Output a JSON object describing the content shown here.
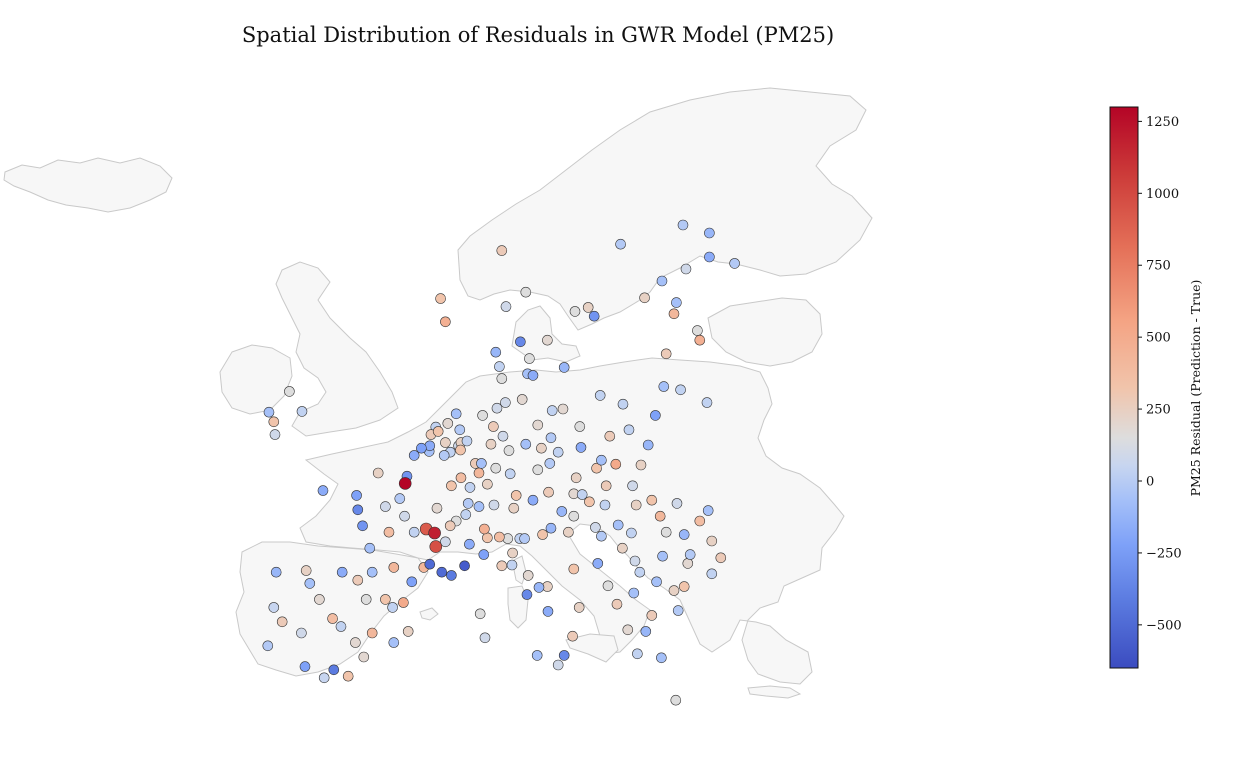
{
  "title": "Spatial Distribution of Residuals in GWR Model (PM25)",
  "colorbar": {
    "label": "PM25 Residual (Prediction - True)",
    "min": -650,
    "max": 1300,
    "ticks": [
      1250,
      1000,
      750,
      500,
      250,
      0,
      -250,
      -500
    ],
    "tick_labels": [
      "1250",
      "1000",
      "750",
      "500",
      "250",
      "0",
      "−250",
      "−500"
    ],
    "colormap": "coolwarm",
    "colors": {
      "low": "#3b4cc0",
      "mid": "#dddddd",
      "high": "#b40426"
    }
  },
  "chart_data": {
    "type": "scatter",
    "title": "Spatial Distribution of Residuals in GWR Model (PM25)",
    "xlabel": "",
    "ylabel": "",
    "value_label": "PM25 Residual (Prediction - True)",
    "background": "Europe country outlines (light gray fill, gray borders)",
    "grid": false,
    "legend": "colorbar-right",
    "points_lonlat_residual": [
      [
        -9.1,
        38.7,
        -150
      ],
      [
        -8.6,
        41.1,
        -80
      ],
      [
        -8.4,
        43.3,
        -250
      ],
      [
        -7.9,
        40.2,
        150
      ],
      [
        -6.0,
        37.4,
        -350
      ],
      [
        -5.9,
        43.4,
        100
      ],
      [
        -4.4,
        36.7,
        -80
      ],
      [
        -3.7,
        40.4,
        250
      ],
      [
        -3.6,
        37.2,
        -500
      ],
      [
        -2.9,
        43.3,
        -300
      ],
      [
        -1.6,
        42.8,
        150
      ],
      [
        -0.9,
        41.6,
        0
      ],
      [
        -0.4,
        39.5,
        300
      ],
      [
        0.7,
        41.6,
        200
      ],
      [
        2.2,
        41.4,
        400
      ],
      [
        1.3,
        41.1,
        -100
      ],
      [
        -2.4,
        36.8,
        200
      ],
      [
        -1.1,
        38.0,
        50
      ],
      [
        -4.8,
        41.6,
        50
      ],
      [
        -6.3,
        39.5,
        -50
      ],
      [
        -5.6,
        42.6,
        -200
      ],
      [
        -3.0,
        39.9,
        -100
      ],
      [
        -1.8,
        38.9,
        50
      ],
      [
        1.4,
        38.9,
        -200
      ],
      [
        2.6,
        39.6,
        100
      ],
      [
        2.35,
        48.85,
        1300
      ],
      [
        3.1,
        50.6,
        -300
      ],
      [
        4.8,
        45.75,
        1150
      ],
      [
        5.4,
        43.3,
        -550
      ],
      [
        7.3,
        43.7,
        -600
      ],
      [
        6.2,
        43.1,
        -500
      ],
      [
        4.4,
        43.8,
        -550
      ],
      [
        1.4,
        43.6,
        300
      ],
      [
        -0.6,
        44.8,
        -200
      ],
      [
        -1.6,
        47.2,
        -450
      ],
      [
        -4.5,
        48.4,
        -300
      ],
      [
        -1.7,
        48.1,
        -350
      ],
      [
        0.1,
        49.5,
        100
      ],
      [
        1.9,
        47.9,
        -150
      ],
      [
        0.7,
        47.4,
        -50
      ],
      [
        3.1,
        45.8,
        -100
      ],
      [
        5.0,
        47.3,
        50
      ],
      [
        6.2,
        48.7,
        200
      ],
      [
        7.75,
        48.6,
        -100
      ],
      [
        2.5,
        49.3,
        -400
      ],
      [
        3.9,
        43.6,
        300
      ],
      [
        2.9,
        42.7,
        -350
      ],
      [
        -0.4,
        43.3,
        -200
      ],
      [
        5.7,
        45.2,
        -50
      ],
      [
        4.9,
        44.9,
        900
      ],
      [
        6.1,
        46.2,
        150
      ],
      [
        4.1,
        46.0,
        850
      ],
      [
        1.0,
        45.8,
        250
      ],
      [
        -1.2,
        46.2,
        -400
      ],
      [
        2.3,
        46.8,
        -50
      ],
      [
        4.35,
        50.85,
        -200
      ],
      [
        4.4,
        51.2,
        -300
      ],
      [
        3.7,
        51.05,
        -350
      ],
      [
        5.6,
        50.6,
        -150
      ],
      [
        4.9,
        52.37,
        -100
      ],
      [
        5.1,
        52.1,
        200
      ],
      [
        6.6,
        53.2,
        -200
      ],
      [
        5.7,
        51.4,
        100
      ],
      [
        6.1,
        50.8,
        -100
      ],
      [
        4.5,
        51.9,
        150
      ],
      [
        5.9,
        52.6,
        50
      ],
      [
        6.9,
        52.2,
        -150
      ],
      [
        6.8,
        51.2,
        -50
      ],
      [
        7.0,
        51.4,
        100
      ],
      [
        7.5,
        51.5,
        -100
      ],
      [
        6.96,
        50.94,
        200
      ],
      [
        8.7,
        50.1,
        -200
      ],
      [
        9.2,
        48.8,
        100
      ],
      [
        11.6,
        48.1,
        200
      ],
      [
        13.4,
        52.5,
        50
      ],
      [
        10.0,
        53.55,
        -50
      ],
      [
        9.7,
        52.4,
        150
      ],
      [
        8.8,
        53.1,
        0
      ],
      [
        12.4,
        51.3,
        -200
      ],
      [
        13.7,
        51.05,
        100
      ],
      [
        11.1,
        49.45,
        -100
      ],
      [
        9.9,
        49.8,
        0
      ],
      [
        8.5,
        49.5,
        300
      ],
      [
        7.6,
        47.6,
        -150
      ],
      [
        8.2,
        50.1,
        150
      ],
      [
        10.7,
        53.9,
        -50
      ],
      [
        12.1,
        54.1,
        50
      ],
      [
        14.6,
        53.4,
        -100
      ],
      [
        11.0,
        50.9,
        0
      ],
      [
        7.0,
        49.2,
        250
      ],
      [
        10.5,
        51.8,
        -50
      ],
      [
        9.5,
        51.3,
        100
      ],
      [
        8.5,
        47.4,
        -200
      ],
      [
        7.4,
        46.9,
        -100
      ],
      [
        6.6,
        46.5,
        0
      ],
      [
        8.95,
        46.0,
        350
      ],
      [
        14.4,
        50.1,
        -150
      ],
      [
        16.6,
        49.2,
        100
      ],
      [
        18.3,
        49.8,
        200
      ],
      [
        15.1,
        50.8,
        -100
      ],
      [
        13.4,
        49.7,
        0
      ],
      [
        17.1,
        48.15,
        -100
      ],
      [
        19.1,
        48.7,
        150
      ],
      [
        21.3,
        48.7,
        -50
      ],
      [
        16.4,
        48.2,
        50
      ],
      [
        15.4,
        47.1,
        -250
      ],
      [
        14.3,
        48.3,
        150
      ],
      [
        13.0,
        47.8,
        -300
      ],
      [
        11.4,
        47.3,
        100
      ],
      [
        9.75,
        47.5,
        -50
      ],
      [
        21.0,
        52.2,
        -100
      ],
      [
        19.9,
        50.05,
        400
      ],
      [
        18.7,
        50.3,
        -200
      ],
      [
        17.0,
        51.1,
        -300
      ],
      [
        16.9,
        52.4,
        0
      ],
      [
        18.6,
        54.35,
        -100
      ],
      [
        19.4,
        51.8,
        150
      ],
      [
        22.6,
        51.25,
        -250
      ],
      [
        22.0,
        50.0,
        100
      ],
      [
        23.2,
        53.1,
        -350
      ],
      [
        20.5,
        53.8,
        -100
      ],
      [
        15.5,
        53.5,
        50
      ],
      [
        14.5,
        51.7,
        -150
      ],
      [
        19.0,
        47.5,
        -100
      ],
      [
        21.6,
        47.5,
        100
      ],
      [
        20.1,
        46.25,
        -200
      ],
      [
        18.2,
        46.1,
        -50
      ],
      [
        17.7,
        47.7,
        200
      ],
      [
        16.4,
        46.8,
        0
      ],
      [
        26.1,
        44.4,
        -150
      ],
      [
        23.6,
        46.8,
        300
      ],
      [
        27.6,
        47.15,
        -200
      ],
      [
        21.2,
        45.75,
        -100
      ],
      [
        28.65,
        44.2,
        150
      ],
      [
        25.6,
        45.65,
        -250
      ],
      [
        24.1,
        45.8,
        0
      ],
      [
        27.9,
        45.25,
        100
      ],
      [
        23.8,
        44.3,
        -200
      ],
      [
        26.9,
        46.5,
        250
      ],
      [
        25.0,
        47.6,
        -50
      ],
      [
        22.9,
        47.8,
        200
      ],
      [
        23.3,
        42.7,
        -200
      ],
      [
        24.75,
        42.15,
        100
      ],
      [
        27.9,
        43.2,
        -100
      ],
      [
        25.9,
        43.85,
        50
      ],
      [
        25.6,
        42.4,
        200
      ],
      [
        14.5,
        46.05,
        -250
      ],
      [
        15.95,
        45.8,
        100
      ],
      [
        18.7,
        45.55,
        -150
      ],
      [
        16.4,
        43.5,
        200
      ],
      [
        18.4,
        43.85,
        -300
      ],
      [
        20.45,
        44.8,
        100
      ],
      [
        21.9,
        43.3,
        -100
      ],
      [
        19.25,
        42.45,
        0
      ],
      [
        21.4,
        42.0,
        -200
      ],
      [
        20.0,
        41.3,
        150
      ],
      [
        21.5,
        44.0,
        -50
      ],
      [
        9.2,
        45.45,
        200
      ],
      [
        7.7,
        45.05,
        -300
      ],
      [
        8.9,
        44.4,
        -350
      ],
      [
        11.3,
        44.5,
        100
      ],
      [
        11.25,
        43.75,
        -100
      ],
      [
        12.5,
        41.9,
        -450
      ],
      [
        14.25,
        40.85,
        -300
      ],
      [
        16.85,
        41.1,
        100
      ],
      [
        15.1,
        37.5,
        -50
      ],
      [
        13.35,
        38.1,
        -200
      ],
      [
        16.3,
        39.3,
        150
      ],
      [
        12.3,
        45.4,
        -150
      ],
      [
        13.8,
        45.65,
        200
      ],
      [
        10.9,
        45.4,
        0
      ],
      [
        10.2,
        45.5,
        250
      ],
      [
        11.9,
        45.4,
        -100
      ],
      [
        12.6,
        43.1,
        50
      ],
      [
        13.5,
        42.35,
        -250
      ],
      [
        14.2,
        42.4,
        100
      ],
      [
        9.0,
        39.2,
        -50
      ],
      [
        8.6,
        40.7,
        0
      ],
      [
        10.4,
        43.7,
        150
      ],
      [
        15.6,
        38.1,
        -450
      ],
      [
        23.7,
        37.95,
        -200
      ],
      [
        22.9,
        40.6,
        150
      ],
      [
        21.7,
        38.2,
        -100
      ],
      [
        24.9,
        35.3,
        0
      ],
      [
        22.4,
        39.6,
        -250
      ],
      [
        20.9,
        39.7,
        50
      ],
      [
        25.1,
        40.9,
        -150
      ],
      [
        18.1,
        59.3,
        -400
      ],
      [
        11.95,
        57.7,
        -450
      ],
      [
        13.0,
        55.6,
        -300
      ],
      [
        17.6,
        59.85,
        100
      ],
      [
        16.5,
        59.6,
        0
      ],
      [
        14.2,
        57.8,
        50
      ],
      [
        20.3,
        63.8,
        -150
      ],
      [
        15.6,
        56.1,
        -250
      ],
      [
        12.7,
        56.65,
        0
      ],
      [
        10.75,
        59.9,
        -50
      ],
      [
        5.3,
        60.4,
        200
      ],
      [
        10.4,
        63.4,
        150
      ],
      [
        5.7,
        58.95,
        350
      ],
      [
        12.4,
        60.8,
        0
      ],
      [
        12.55,
        55.7,
        -200
      ],
      [
        10.2,
        56.15,
        -100
      ],
      [
        9.9,
        57.05,
        -250
      ],
      [
        10.4,
        55.4,
        0
      ],
      [
        24.95,
        60.15,
        -200
      ],
      [
        22.3,
        60.45,
        100
      ],
      [
        23.75,
        61.5,
        -200
      ],
      [
        25.75,
        62.25,
        -50
      ],
      [
        25.5,
        65.0,
        -150
      ],
      [
        27.7,
        63.0,
        -300
      ],
      [
        29.8,
        62.6,
        -150
      ],
      [
        27.7,
        64.5,
        -250
      ],
      [
        24.1,
        56.95,
        150
      ],
      [
        25.3,
        54.7,
        -100
      ],
      [
        23.9,
        54.9,
        -200
      ],
      [
        24.75,
        59.45,
        300
      ],
      [
        26.7,
        58.4,
        0
      ],
      [
        27.5,
        53.9,
        -100
      ],
      [
        26.9,
        57.8,
        350
      ],
      [
        -6.25,
        53.35,
        -100
      ],
      [
        -8.5,
        51.9,
        -50
      ],
      [
        -8.6,
        52.7,
        200
      ],
      [
        -7.3,
        54.6,
        0
      ],
      [
        -9.0,
        53.3,
        -200
      ]
    ]
  }
}
